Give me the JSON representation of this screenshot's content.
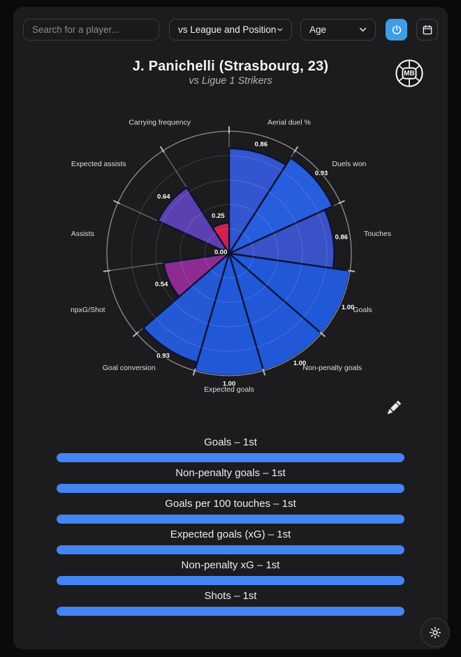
{
  "topbar": {
    "search_placeholder": "Search for a player...",
    "filter1_label": "vs League and Position",
    "filter2_label": "Age",
    "accent_color": "#3d9ee6"
  },
  "header": {
    "title": "J. Panichelli (Strasbourg, 23)",
    "subtitle": "vs Ligue 1 Strikers",
    "logo_text": "MB"
  },
  "chart_data": {
    "type": "bar",
    "subtype": "polar-pizza",
    "title": "Percentile pizza chart vs Ligue 1 Strikers",
    "categories": [
      "Aerial duel %",
      "Duels won",
      "Touches",
      "Goals",
      "Non-penalty goals",
      "Expected goals",
      "Goal conversion",
      "npxG/Shot",
      "Assists",
      "Expected assists",
      "Carrying frequency"
    ],
    "values": [
      0.86,
      0.93,
      0.86,
      1.0,
      1.0,
      1.0,
      0.93,
      0.54,
      0.0,
      0.64,
      0.25
    ],
    "value_labels": [
      "0.86",
      "0.93",
      "0.86",
      "1.00",
      "1.00",
      "1.00",
      "0.93",
      "0.54",
      "0.00",
      "0.64",
      "0.25"
    ],
    "slice_colors": [
      "#3355cf",
      "#275ede",
      "#3a52c8",
      "#2158d8",
      "#2158d8",
      "#2158d8",
      "#2459d6",
      "#8d2b92",
      "#c81e4e",
      "#5c40b0",
      "#d11f50"
    ],
    "rlim": [
      0,
      1
    ],
    "grid_levels": [
      0.2,
      0.4,
      0.6,
      0.8,
      1.0
    ],
    "start_angle": "12 o'clock",
    "direction": "clockwise",
    "grid_on": true,
    "legend_position": "none"
  },
  "rankings": [
    {
      "label": "Goals – 1st",
      "pct": 100
    },
    {
      "label": "Non-penalty goals – 1st",
      "pct": 100
    },
    {
      "label": "Goals per 100 touches – 1st",
      "pct": 100
    },
    {
      "label": "Expected goals (xG) – 1st",
      "pct": 100
    },
    {
      "label": "Non-penalty xG – 1st",
      "pct": 100
    },
    {
      "label": "Shots – 1st",
      "pct": 100
    }
  ],
  "colors": {
    "bar_fill": "#4484f3",
    "card_bg": "#1c1c1e",
    "page_bg": "#0a0a0b"
  }
}
